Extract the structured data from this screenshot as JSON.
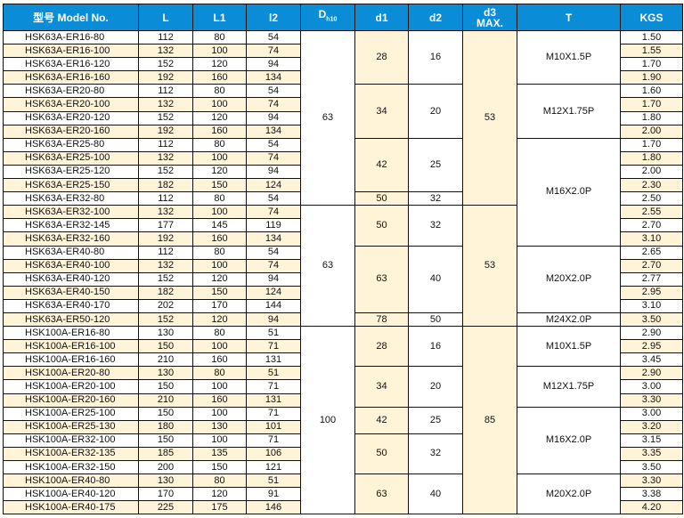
{
  "header": {
    "model": "型号 Model No.",
    "L": "L",
    "L1": "L1",
    "l2": "l2",
    "D": "D",
    "D_sub": "h10",
    "d1": "d1",
    "d2": "d2",
    "d3_line1": "d3",
    "d3_line2": "MAX.",
    "T": "T",
    "KGS": "KGS"
  },
  "colors": {
    "header_bg": "#0a8dd6",
    "stripe": "#fff4d8"
  },
  "rows": [
    {
      "model": "HSK63A-ER16-80",
      "L": "112",
      "L1": "80",
      "l2": "54",
      "kgs": "1.50"
    },
    {
      "model": "HSK63A-ER16-100",
      "L": "132",
      "L1": "100",
      "l2": "74",
      "kgs": "1.55"
    },
    {
      "model": "HSK63A-ER16-120",
      "L": "152",
      "L1": "120",
      "l2": "94",
      "kgs": "1.70"
    },
    {
      "model": "HSK63A-ER16-160",
      "L": "192",
      "L1": "160",
      "l2": "134",
      "kgs": "1.90"
    },
    {
      "model": "HSK63A-ER20-80",
      "L": "112",
      "L1": "80",
      "l2": "54",
      "kgs": "1.60"
    },
    {
      "model": "HSK63A-ER20-100",
      "L": "132",
      "L1": "100",
      "l2": "74",
      "kgs": "1.70"
    },
    {
      "model": "HSK63A-ER20-120",
      "L": "152",
      "L1": "120",
      "l2": "94",
      "kgs": "1.80"
    },
    {
      "model": "HSK63A-ER20-160",
      "L": "192",
      "L1": "160",
      "l2": "134",
      "kgs": "2.00"
    },
    {
      "model": "HSK63A-ER25-80",
      "L": "112",
      "L1": "80",
      "l2": "54",
      "kgs": "1.70"
    },
    {
      "model": "HSK63A-ER25-100",
      "L": "132",
      "L1": "100",
      "l2": "74",
      "kgs": "1.80"
    },
    {
      "model": "HSK63A-ER25-120",
      "L": "152",
      "L1": "120",
      "l2": "94",
      "kgs": "2.00"
    },
    {
      "model": "HSK63A-ER25-150",
      "L": "182",
      "L1": "150",
      "l2": "124",
      "kgs": "2.30"
    },
    {
      "model": "HSK63A-ER32-80",
      "L": "112",
      "L1": "80",
      "l2": "54",
      "kgs": "2.50"
    },
    {
      "model": "HSK63A-ER32-100",
      "L": "132",
      "L1": "100",
      "l2": "74",
      "kgs": "2.55"
    },
    {
      "model": "HSK63A-ER32-145",
      "L": "177",
      "L1": "145",
      "l2": "119",
      "kgs": "2.70"
    },
    {
      "model": "HSK63A-ER32-160",
      "L": "192",
      "L1": "160",
      "l2": "134",
      "kgs": "3.10"
    },
    {
      "model": "HSK63A-ER40-80",
      "L": "112",
      "L1": "80",
      "l2": "54",
      "kgs": "2.65"
    },
    {
      "model": "HSK63A-ER40-100",
      "L": "132",
      "L1": "100",
      "l2": "74",
      "kgs": "2.70"
    },
    {
      "model": "HSK63A-ER40-120",
      "L": "152",
      "L1": "120",
      "l2": "94",
      "kgs": "2.77"
    },
    {
      "model": "HSK63A-ER40-150",
      "L": "182",
      "L1": "150",
      "l2": "124",
      "kgs": "2.95"
    },
    {
      "model": "HSK63A-ER40-170",
      "L": "202",
      "L1": "170",
      "l2": "144",
      "kgs": "3.10"
    },
    {
      "model": "HSK63A-ER50-120",
      "L": "152",
      "L1": "120",
      "l2": "94",
      "kgs": "3.50"
    },
    {
      "model": "HSK100A-ER16-80",
      "L": "130",
      "L1": "80",
      "l2": "51",
      "kgs": "2.90"
    },
    {
      "model": "HSK100A-ER16-100",
      "L": "150",
      "L1": "100",
      "l2": "71",
      "kgs": "2.95"
    },
    {
      "model": "HSK100A-ER16-160",
      "L": "210",
      "L1": "160",
      "l2": "131",
      "kgs": "3.45"
    },
    {
      "model": "HSK100A-ER20-80",
      "L": "130",
      "L1": "80",
      "l2": "51",
      "kgs": "2.90"
    },
    {
      "model": "HSK100A-ER20-100",
      "L": "150",
      "L1": "100",
      "l2": "71",
      "kgs": "3.00"
    },
    {
      "model": "HSK100A-ER20-160",
      "L": "210",
      "L1": "160",
      "l2": "131",
      "kgs": "3.30"
    },
    {
      "model": "HSK100A-ER25-100",
      "L": "150",
      "L1": "100",
      "l2": "71",
      "kgs": "3.00"
    },
    {
      "model": "HSK100A-ER25-130",
      "L": "180",
      "L1": "130",
      "l2": "101",
      "kgs": "3.20"
    },
    {
      "model": "HSK100A-ER32-100",
      "L": "150",
      "L1": "100",
      "l2": "71",
      "kgs": "3.15"
    },
    {
      "model": "HSK100A-ER32-135",
      "L": "185",
      "L1": "135",
      "l2": "106",
      "kgs": "3.35"
    },
    {
      "model": "HSK100A-ER32-150",
      "L": "200",
      "L1": "150",
      "l2": "121",
      "kgs": "3.50"
    },
    {
      "model": "HSK100A-ER40-80",
      "L": "130",
      "L1": "80",
      "l2": "51",
      "kgs": "3.30"
    },
    {
      "model": "HSK100A-ER40-120",
      "L": "170",
      "L1": "120",
      "l2": "91",
      "kgs": "3.38"
    },
    {
      "model": "HSK100A-ER40-175",
      "L": "225",
      "L1": "175",
      "l2": "146",
      "kgs": "4.20"
    }
  ],
  "shank_groups": [
    {
      "rows": 13,
      "D": "63",
      "d3": "53"
    },
    {
      "rows": 9,
      "D": "63",
      "d3": "53"
    },
    {
      "rows": 14,
      "D": "100",
      "d3": "85"
    }
  ],
  "collet_groups": [
    {
      "rows": 4,
      "d1": "28",
      "d2": "16"
    },
    {
      "rows": 4,
      "d1": "34",
      "d2": "20"
    },
    {
      "rows": 4,
      "d1": "42",
      "d2": "25"
    },
    {
      "rows": 1,
      "d1": "50",
      "d2": "32"
    },
    {
      "rows": 3,
      "d1": "50",
      "d2": "32"
    },
    {
      "rows": 5,
      "d1": "63",
      "d2": "40"
    },
    {
      "rows": 1,
      "d1": "78",
      "d2": "50"
    },
    {
      "rows": 3,
      "d1": "28",
      "d2": "16"
    },
    {
      "rows": 3,
      "d1": "34",
      "d2": "20"
    },
    {
      "rows": 2,
      "d1": "42",
      "d2": "25"
    },
    {
      "rows": 3,
      "d1": "50",
      "d2": "32"
    },
    {
      "rows": 3,
      "d1": "63",
      "d2": "40"
    }
  ],
  "thread_groups": [
    {
      "rows": 4,
      "T": "M10X1.5P"
    },
    {
      "rows": 4,
      "T": "M12X1.75P"
    },
    {
      "rows": 8,
      "T": "M16X2.0P"
    },
    {
      "rows": 5,
      "T": "M20X2.0P"
    },
    {
      "rows": 1,
      "T": "M24X2.0P"
    },
    {
      "rows": 3,
      "T": "M10X1.5P"
    },
    {
      "rows": 3,
      "T": "M12X1.75P"
    },
    {
      "rows": 5,
      "T": "M16X2.0P"
    },
    {
      "rows": 3,
      "T": "M20X2.0P"
    }
  ]
}
